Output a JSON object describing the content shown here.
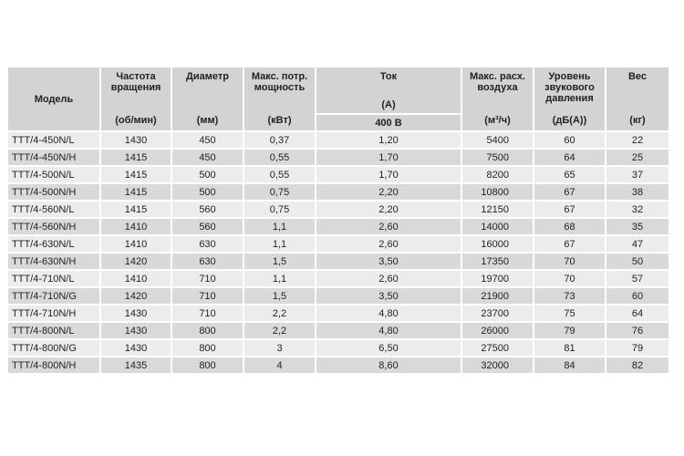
{
  "headers": {
    "model": "Модель",
    "speed": {
      "label": "Частота вращения",
      "unit": "(об/мин)"
    },
    "diameter": {
      "label": "Диаметр",
      "unit": "(мм)"
    },
    "power": {
      "label": "Макс. потр. мощность",
      "unit": "(кВт)"
    },
    "current": {
      "label": "Ток",
      "unit": "(A)",
      "sub": "400 B"
    },
    "airflow": {
      "label": "Макс. расх. воздуха",
      "unit": "(м³/ч)"
    },
    "sound": {
      "label": "Уровень звукового давления",
      "unit": "(дБ(A))"
    },
    "weight": {
      "label": "Вес",
      "unit": "(кг)"
    }
  },
  "rows": [
    [
      "TTT/4-450N/L",
      "1430",
      "450",
      "0,37",
      "1,20",
      "5400",
      "60",
      "22"
    ],
    [
      "TTT/4-450N/H",
      "1415",
      "450",
      "0,55",
      "1,70",
      "7500",
      "64",
      "25"
    ],
    [
      "TTT/4-500N/L",
      "1415",
      "500",
      "0,55",
      "1,70",
      "8200",
      "65",
      "37"
    ],
    [
      "TTT/4-500N/H",
      "1415",
      "500",
      "0,75",
      "2,20",
      "10800",
      "67",
      "38"
    ],
    [
      "TTT/4-560N/L",
      "1415",
      "560",
      "0,75",
      "2,20",
      "12150",
      "67",
      "32"
    ],
    [
      "TTT/4-560N/H",
      "1410",
      "560",
      "1,1",
      "2,60",
      "14000",
      "68",
      "35"
    ],
    [
      "TTT/4-630N/L",
      "1410",
      "630",
      "1,1",
      "2,60",
      "16000",
      "67",
      "47"
    ],
    [
      "TTT/4-630N/H",
      "1420",
      "630",
      "1,5",
      "3,50",
      "17350",
      "70",
      "50"
    ],
    [
      "TTT/4-710N/L",
      "1410",
      "710",
      "1,1",
      "2,60",
      "19700",
      "70",
      "57"
    ],
    [
      "TTT/4-710N/G",
      "1420",
      "710",
      "1,5",
      "3,50",
      "21900",
      "73",
      "60"
    ],
    [
      "TTT/4-710N/H",
      "1430",
      "710",
      "2,2",
      "4,80",
      "23700",
      "75",
      "64"
    ],
    [
      "TTT/4-800N/L",
      "1430",
      "800",
      "2,2",
      "4,80",
      "26000",
      "79",
      "76"
    ],
    [
      "TTT/4-800N/G",
      "1430",
      "800",
      "3",
      "6,50",
      "27500",
      "81",
      "79"
    ],
    [
      "TTT/4-800N/H",
      "1435",
      "800",
      "4",
      "8,60",
      "32000",
      "84",
      "82"
    ]
  ],
  "colors": {
    "header_bg": "#d3d3d3",
    "row_light": "#ececec",
    "row_dark": "#d9d9d9"
  }
}
